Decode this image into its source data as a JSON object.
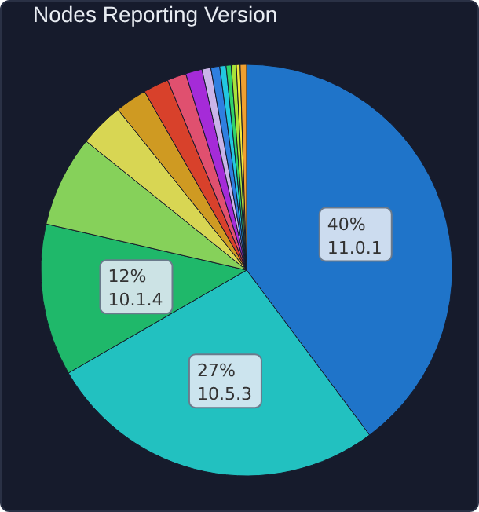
{
  "chart_data": {
    "type": "pie",
    "title": "Nodes Reporting Version",
    "categories": [
      "11.0.1",
      "10.5.3",
      "10.1.4",
      null,
      null,
      null,
      null,
      null,
      null,
      null,
      null,
      null,
      null,
      null,
      null,
      null
    ],
    "values": [
      40,
      27,
      12,
      7.2,
      3.5,
      2.5,
      2,
      1.5,
      1.3,
      0.7,
      0.7,
      0.5,
      0.4,
      0.4,
      0.3,
      0.5
    ],
    "value_labels": [
      "40%",
      "27%",
      "12%",
      null,
      null,
      null,
      null,
      null,
      null,
      null,
      null,
      null,
      null,
      null,
      null,
      null
    ],
    "colors": [
      "#1f74c9",
      "#22c1c0",
      "#1fb86a",
      "#86d15a",
      "#d8d653",
      "#cf9a22",
      "#d8412b",
      "#e0506f",
      "#a52bd8",
      "#c9b4e8",
      "#2f7fe0",
      "#22c7e0",
      "#2fd36a",
      "#a8e23a",
      "#f0e83a",
      "#f0a030"
    ]
  }
}
